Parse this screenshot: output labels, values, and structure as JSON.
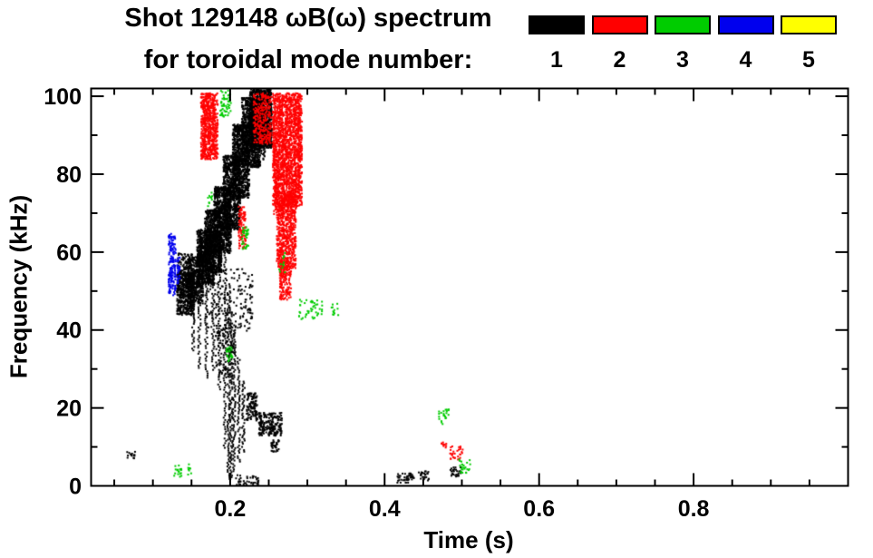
{
  "chart_data": {
    "type": "scatter",
    "title": "Shot 129148 ωB(ω) spectrum",
    "subtitle": "for toroidal mode number:",
    "xlabel": "Time (s)",
    "ylabel": "Frequency (kHz)",
    "xlim": [
      0.02,
      1.0
    ],
    "ylim": [
      0,
      102
    ],
    "grid": false,
    "legend_position": "top-right",
    "xticks": [
      {
        "value": 0.2,
        "label": "0.2"
      },
      {
        "value": 0.4,
        "label": "0.4"
      },
      {
        "value": 0.6,
        "label": "0.6"
      },
      {
        "value": 0.8,
        "label": "0.8"
      }
    ],
    "yticks": [
      {
        "value": 0,
        "label": "0"
      },
      {
        "value": 20,
        "label": "20"
      },
      {
        "value": 40,
        "label": "40"
      },
      {
        "value": 60,
        "label": "60"
      },
      {
        "value": 80,
        "label": "80"
      },
      {
        "value": 100,
        "label": "100"
      }
    ],
    "x_minor_step": 0.05,
    "y_minor_step": 10,
    "series": [
      {
        "label": "1",
        "color": "#000000",
        "blobs": [
          {
            "t": [
              0.13,
              0.152
            ],
            "f": [
              44,
              55
            ],
            "n": 420
          },
          {
            "t": [
              0.144,
              0.164
            ],
            "f": [
              47,
              59
            ],
            "n": 420
          },
          {
            "t": [
              0.156,
              0.178
            ],
            "f": [
              52,
              66
            ],
            "n": 700
          },
          {
            "t": [
              0.166,
              0.188
            ],
            "f": [
              55,
              71
            ],
            "n": 750
          },
          {
            "t": [
              0.178,
              0.2
            ],
            "f": [
              60,
              77
            ],
            "n": 750
          },
          {
            "t": [
              0.19,
              0.212
            ],
            "f": [
              66,
              85
            ],
            "n": 750
          },
          {
            "t": [
              0.202,
              0.224
            ],
            "f": [
              74,
              93
            ],
            "n": 750
          },
          {
            "t": [
              0.214,
              0.238
            ],
            "f": [
              82,
              100
            ],
            "n": 850
          },
          {
            "t": [
              0.224,
              0.253
            ],
            "f": [
              87,
              102
            ],
            "n": 950
          },
          {
            "t": [
              0.131,
              0.15
            ],
            "f": [
              50,
              60
            ],
            "n": 200
          },
          {
            "t": [
              0.168,
              0.228
            ],
            "f": [
              40,
              56
            ],
            "n": 180
          },
          {
            "t": [
              0.18,
              0.206
            ],
            "f": [
              28,
              42
            ],
            "n": 110
          },
          {
            "t": [
              0.22,
              0.234
            ],
            "f": [
              17,
              24
            ],
            "n": 110
          },
          {
            "t": [
              0.236,
              0.266
            ],
            "f": [
              13,
              19
            ],
            "n": 200
          },
          {
            "t": [
              0.252,
              0.262
            ],
            "f": [
              9,
              12
            ],
            "n": 35
          },
          {
            "t": [
              0.415,
              0.437
            ],
            "f": [
              1,
              3.5
            ],
            "n": 45
          },
          {
            "t": [
              0.442,
              0.456
            ],
            "f": [
              1.5,
              4
            ],
            "n": 25
          },
          {
            "t": [
              0.484,
              0.498
            ],
            "f": [
              2.5,
              5
            ],
            "n": 28
          },
          {
            "t": [
              0.064,
              0.076
            ],
            "f": [
              7,
              9
            ],
            "n": 14
          },
          {
            "t": [
              0.206,
              0.236
            ],
            "f": [
              0.5,
              3
            ],
            "n": 40
          }
        ],
        "segments": [
          {
            "t": 0.151,
            "f": [
              55,
              35
            ],
            "n": 45
          },
          {
            "t": 0.159,
            "f": [
              58,
              30
            ],
            "n": 55
          },
          {
            "t": 0.168,
            "f": [
              60,
              28
            ],
            "n": 60
          },
          {
            "t": 0.177,
            "f": [
              62,
              30
            ],
            "n": 60
          },
          {
            "t": 0.185,
            "f": [
              65,
              25
            ],
            "n": 65
          },
          {
            "t": 0.192,
            "f": [
              60,
              10
            ],
            "n": 85
          },
          {
            "t": 0.197,
            "f": [
              52,
              2
            ],
            "n": 110
          },
          {
            "t": 0.2,
            "f": [
              46,
              2
            ],
            "n": 100
          },
          {
            "t": 0.204,
            "f": [
              40,
              4
            ],
            "n": 80
          },
          {
            "t": 0.21,
            "f": [
              33,
              6
            ],
            "n": 60
          },
          {
            "t": 0.216,
            "f": [
              27,
              9
            ],
            "n": 45
          },
          {
            "t": 0.228,
            "f": [
              102,
              86
            ],
            "n": 60
          },
          {
            "t": 0.233,
            "f": [
              102,
              88
            ],
            "n": 60
          },
          {
            "t": 0.238,
            "f": [
              101,
              85
            ],
            "n": 60
          },
          {
            "t": 0.243,
            "f": [
              100,
              84
            ],
            "n": 60
          },
          {
            "t": 0.248,
            "f": [
              101,
              87
            ],
            "n": 55
          }
        ]
      },
      {
        "label": "2",
        "color": "#ff0000",
        "blobs": [
          {
            "t": [
              0.254,
              0.292
            ],
            "f": [
              72,
              101
            ],
            "n": 1500
          },
          {
            "t": [
              0.259,
              0.284
            ],
            "f": [
              56,
              75
            ],
            "n": 520
          },
          {
            "t": [
              0.263,
              0.278
            ],
            "f": [
              48,
              58
            ],
            "n": 180
          },
          {
            "t": [
              0.161,
              0.183
            ],
            "f": [
              84,
              101
            ],
            "n": 500
          },
          {
            "t": [
              0.229,
              0.252
            ],
            "f": [
              88,
              101
            ],
            "n": 260
          },
          {
            "t": [
              0.21,
              0.219
            ],
            "f": [
              61,
              72
            ],
            "n": 90
          },
          {
            "t": [
              0.483,
              0.5
            ],
            "f": [
              7,
              10.5
            ],
            "n": 30
          },
          {
            "t": [
              0.472,
              0.479
            ],
            "f": [
              9,
              11.5
            ],
            "n": 10
          }
        ],
        "segments": [
          {
            "t": 0.257,
            "f": [
              100,
              70
            ],
            "n": 80
          },
          {
            "t": 0.262,
            "f": [
              101,
              58
            ],
            "n": 90
          },
          {
            "t": 0.267,
            "f": [
              100,
              52
            ],
            "n": 90
          },
          {
            "t": 0.272,
            "f": [
              101,
              55
            ],
            "n": 90
          },
          {
            "t": 0.277,
            "f": [
              100,
              62
            ],
            "n": 85
          },
          {
            "t": 0.283,
            "f": [
              101,
              68
            ],
            "n": 80
          },
          {
            "t": 0.288,
            "f": [
              99,
              74
            ],
            "n": 70
          },
          {
            "t": 0.166,
            "f": [
              100,
              86
            ],
            "n": 50
          },
          {
            "t": 0.172,
            "f": [
              101,
              85
            ],
            "n": 50
          },
          {
            "t": 0.178,
            "f": [
              100,
              87
            ],
            "n": 45
          }
        ]
      },
      {
        "label": "3",
        "color": "#00cc00",
        "blobs": [
          {
            "t": [
              0.186,
              0.201
            ],
            "f": [
              95,
              102
            ],
            "n": 55
          },
          {
            "t": [
              0.214,
              0.223
            ],
            "f": [
              61,
              67
            ],
            "n": 35
          },
          {
            "t": [
              0.288,
              0.318
            ],
            "f": [
              43,
              48
            ],
            "n": 45
          },
          {
            "t": [
              0.33,
              0.34
            ],
            "f": [
              44,
              47
            ],
            "n": 12
          },
          {
            "t": [
              0.194,
              0.202
            ],
            "f": [
              32,
              36
            ],
            "n": 22
          },
          {
            "t": [
              0.126,
              0.136
            ],
            "f": [
              2.5,
              5.5
            ],
            "n": 18
          },
          {
            "t": [
              0.144,
              0.15
            ],
            "f": [
              3,
              6
            ],
            "n": 8
          },
          {
            "t": [
              0.262,
              0.27
            ],
            "f": [
              55,
              60
            ],
            "n": 12
          },
          {
            "t": [
              0.17,
              0.176
            ],
            "f": [
              72,
              76
            ],
            "n": 10
          },
          {
            "t": [
              0.468,
              0.482
            ],
            "f": [
              16,
              20
            ],
            "n": 22
          },
          {
            "t": [
              0.495,
              0.51
            ],
            "f": [
              3.5,
              7.5
            ],
            "n": 24
          }
        ],
        "segments": []
      },
      {
        "label": "4",
        "color": "#0000ee",
        "blobs": [
          {
            "t": [
              0.119,
              0.1285
            ],
            "f": [
              49,
              65
            ],
            "n": 160
          },
          {
            "t": [
              0.13,
              0.134
            ],
            "f": [
              52,
              59
            ],
            "n": 30
          }
        ],
        "segments": []
      },
      {
        "label": "5",
        "color": "#ffff00",
        "blobs": [],
        "segments": []
      }
    ]
  }
}
